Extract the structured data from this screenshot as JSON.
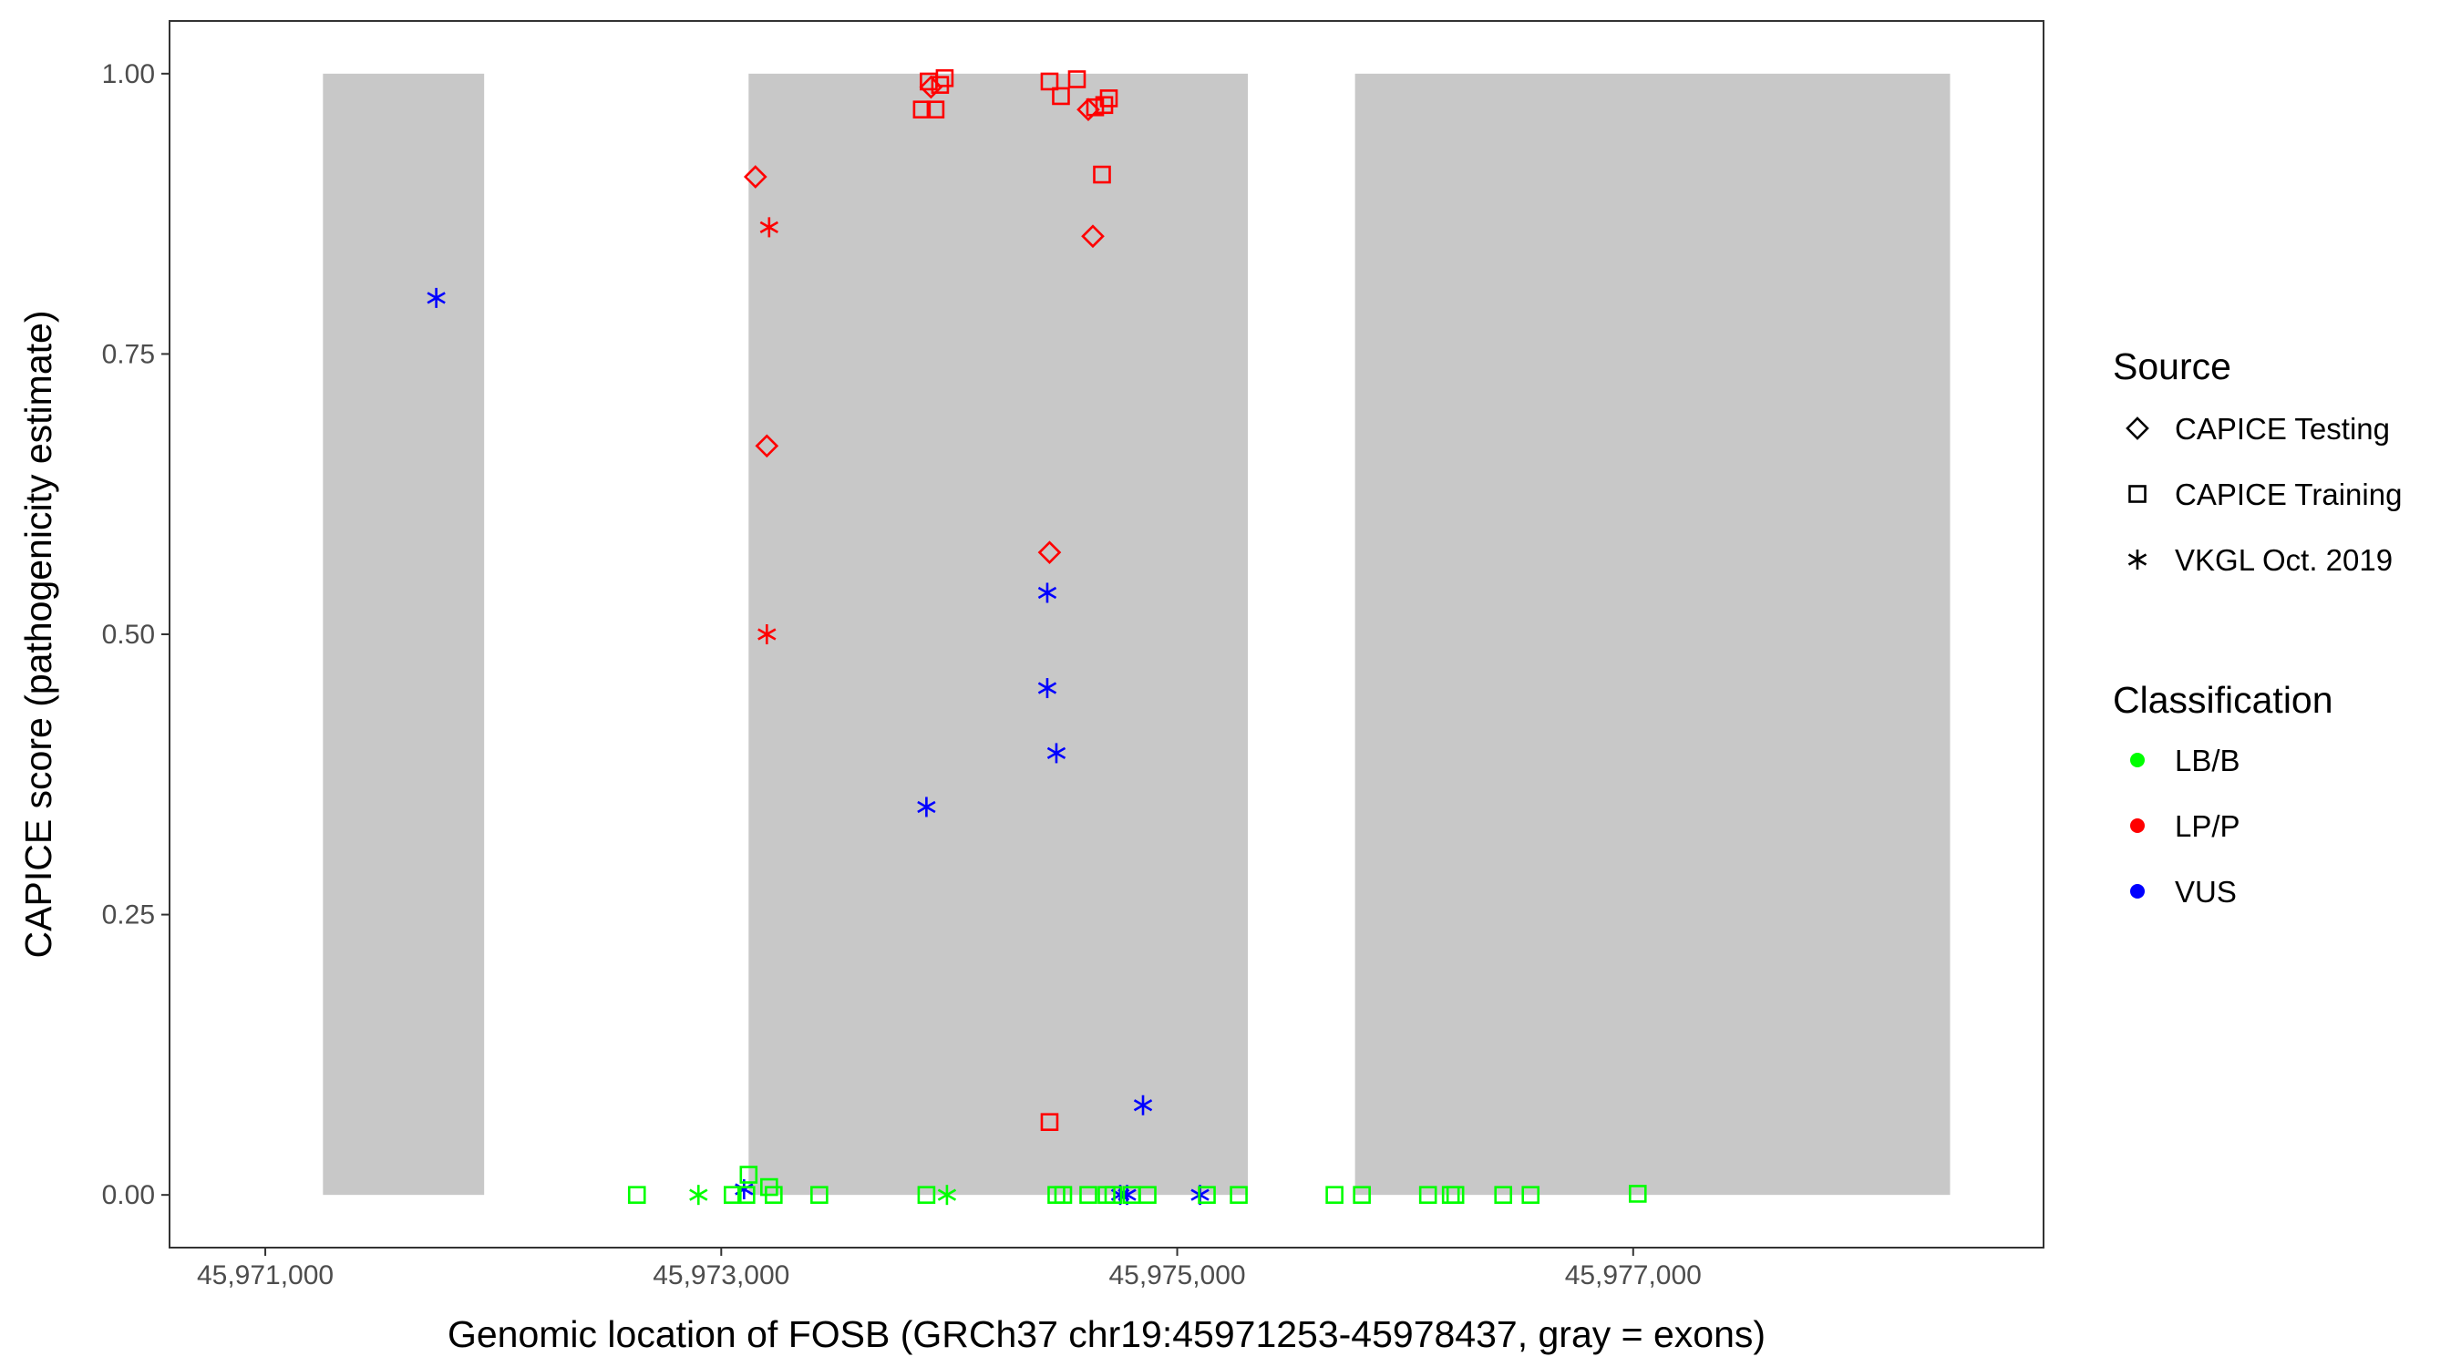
{
  "chart_data": {
    "type": "scatter",
    "xlabel": "Genomic location of FOSB (GRCh37 chr19:45971253-45978437, gray = exons)",
    "ylabel": "CAPICE score (pathogenicity estimate)",
    "xlim": [
      45970580,
      45978800
    ],
    "ylim": [
      -0.047,
      1.047
    ],
    "x_ticks": [
      45971000,
      45973000,
      45975000,
      45977000
    ],
    "x_tick_labels": [
      "45,971,000",
      "45,973,000",
      "45,975,000",
      "45,977,000"
    ],
    "y_ticks": [
      0,
      0.25,
      0.5,
      0.75,
      1
    ],
    "y_tick_labels": [
      "0.00",
      "0.25",
      "0.50",
      "0.75",
      "1.00"
    ],
    "grid": false,
    "exons": [
      {
        "start": 45971253,
        "end": 45971960
      },
      {
        "start": 45973120,
        "end": 45975310
      },
      {
        "start": 45975780,
        "end": 45978390
      }
    ],
    "exon_color": "#c8c8c8",
    "shapes": {
      "CAPICE Testing": "diamond",
      "CAPICE Training": "square",
      "VKGL Oct. 2019": "asterisk"
    },
    "colors": {
      "LB/B": "#00ff00",
      "LP/P": "#ff0000",
      "VUS": "#0000ff"
    },
    "points": [
      {
        "x": 45971750,
        "y": 0.8,
        "source": "VKGL Oct. 2019",
        "cls": "VUS"
      },
      {
        "x": 45973150,
        "y": 0.908,
        "source": "CAPICE Testing",
        "cls": "LP/P"
      },
      {
        "x": 45973210,
        "y": 0.863,
        "source": "VKGL Oct. 2019",
        "cls": "LP/P"
      },
      {
        "x": 45973200,
        "y": 0.668,
        "source": "CAPICE Testing",
        "cls": "LP/P"
      },
      {
        "x": 45973200,
        "y": 0.5,
        "source": "VKGL Oct. 2019",
        "cls": "LP/P"
      },
      {
        "x": 45973880,
        "y": 0.968,
        "source": "CAPICE Training",
        "cls": "LP/P"
      },
      {
        "x": 45973910,
        "y": 0.993,
        "source": "CAPICE Training",
        "cls": "LP/P"
      },
      {
        "x": 45973920,
        "y": 0.988,
        "source": "CAPICE Testing",
        "cls": "LP/P"
      },
      {
        "x": 45973940,
        "y": 0.968,
        "source": "CAPICE Training",
        "cls": "LP/P"
      },
      {
        "x": 45973960,
        "y": 0.99,
        "source": "CAPICE Training",
        "cls": "LP/P"
      },
      {
        "x": 45973980,
        "y": 0.996,
        "source": "CAPICE Training",
        "cls": "LP/P"
      },
      {
        "x": 45974440,
        "y": 0.993,
        "source": "CAPICE Training",
        "cls": "LP/P"
      },
      {
        "x": 45974490,
        "y": 0.98,
        "source": "CAPICE Training",
        "cls": "LP/P"
      },
      {
        "x": 45974560,
        "y": 0.995,
        "source": "CAPICE Training",
        "cls": "LP/P"
      },
      {
        "x": 45974610,
        "y": 0.968,
        "source": "CAPICE Testing",
        "cls": "LP/P"
      },
      {
        "x": 45974640,
        "y": 0.97,
        "source": "CAPICE Training",
        "cls": "LP/P"
      },
      {
        "x": 45974680,
        "y": 0.972,
        "source": "CAPICE Training",
        "cls": "LP/P"
      },
      {
        "x": 45974700,
        "y": 0.978,
        "source": "CAPICE Training",
        "cls": "LP/P"
      },
      {
        "x": 45974670,
        "y": 0.91,
        "source": "CAPICE Training",
        "cls": "LP/P"
      },
      {
        "x": 45974630,
        "y": 0.855,
        "source": "CAPICE Testing",
        "cls": "LP/P"
      },
      {
        "x": 45974440,
        "y": 0.573,
        "source": "CAPICE Testing",
        "cls": "LP/P"
      },
      {
        "x": 45974440,
        "y": 0.065,
        "source": "CAPICE Training",
        "cls": "LP/P"
      },
      {
        "x": 45974430,
        "y": 0.537,
        "source": "VKGL Oct. 2019",
        "cls": "VUS"
      },
      {
        "x": 45974430,
        "y": 0.452,
        "source": "VKGL Oct. 2019",
        "cls": "VUS"
      },
      {
        "x": 45974470,
        "y": 0.394,
        "source": "VKGL Oct. 2019",
        "cls": "VUS"
      },
      {
        "x": 45973900,
        "y": 0.346,
        "source": "VKGL Oct. 2019",
        "cls": "VUS"
      },
      {
        "x": 45974850,
        "y": 0.08,
        "source": "VKGL Oct. 2019",
        "cls": "VUS"
      },
      {
        "x": 45973100,
        "y": 0.005,
        "source": "VKGL Oct. 2019",
        "cls": "VUS"
      },
      {
        "x": 45974750,
        "y": 0.0,
        "source": "VKGL Oct. 2019",
        "cls": "VUS"
      },
      {
        "x": 45974780,
        "y": 0.0,
        "source": "VKGL Oct. 2019",
        "cls": "VUS"
      },
      {
        "x": 45975100,
        "y": 0.0,
        "source": "VKGL Oct. 2019",
        "cls": "VUS"
      },
      {
        "x": 45973120,
        "y": 0.018,
        "source": "CAPICE Training",
        "cls": "LB/B"
      },
      {
        "x": 45973210,
        "y": 0.007,
        "source": "CAPICE Training",
        "cls": "LB/B"
      },
      {
        "x": 45972630,
        "y": 0.0,
        "source": "CAPICE Training",
        "cls": "LB/B"
      },
      {
        "x": 45972900,
        "y": 0.0,
        "source": "VKGL Oct. 2019",
        "cls": "LB/B"
      },
      {
        "x": 45973050,
        "y": 0.0,
        "source": "CAPICE Training",
        "cls": "LB/B"
      },
      {
        "x": 45973110,
        "y": 0.0,
        "source": "CAPICE Training",
        "cls": "LB/B"
      },
      {
        "x": 45973230,
        "y": 0.0,
        "source": "CAPICE Training",
        "cls": "LB/B"
      },
      {
        "x": 45973430,
        "y": 0.0,
        "source": "CAPICE Training",
        "cls": "LB/B"
      },
      {
        "x": 45973900,
        "y": 0.0,
        "source": "CAPICE Training",
        "cls": "LB/B"
      },
      {
        "x": 45973990,
        "y": 0.0,
        "source": "VKGL Oct. 2019",
        "cls": "LB/B"
      },
      {
        "x": 45974470,
        "y": 0.0,
        "source": "CAPICE Training",
        "cls": "LB/B"
      },
      {
        "x": 45974500,
        "y": 0.0,
        "source": "CAPICE Training",
        "cls": "LB/B"
      },
      {
        "x": 45974610,
        "y": 0.0,
        "source": "CAPICE Training",
        "cls": "LB/B"
      },
      {
        "x": 45974690,
        "y": 0.0,
        "source": "CAPICE Training",
        "cls": "LB/B"
      },
      {
        "x": 45974720,
        "y": 0.0,
        "source": "CAPICE Training",
        "cls": "LB/B"
      },
      {
        "x": 45974800,
        "y": 0.0,
        "source": "CAPICE Training",
        "cls": "LB/B"
      },
      {
        "x": 45974870,
        "y": 0.0,
        "source": "CAPICE Training",
        "cls": "LB/B"
      },
      {
        "x": 45975130,
        "y": 0.0,
        "source": "CAPICE Training",
        "cls": "LB/B"
      },
      {
        "x": 45975270,
        "y": 0.0,
        "source": "CAPICE Training",
        "cls": "LB/B"
      },
      {
        "x": 45975690,
        "y": 0.0,
        "source": "CAPICE Training",
        "cls": "LB/B"
      },
      {
        "x": 45975810,
        "y": 0.0,
        "source": "CAPICE Training",
        "cls": "LB/B"
      },
      {
        "x": 45976100,
        "y": 0.0,
        "source": "CAPICE Training",
        "cls": "LB/B"
      },
      {
        "x": 45976200,
        "y": 0.0,
        "source": "CAPICE Training",
        "cls": "LB/B"
      },
      {
        "x": 45976220,
        "y": 0.0,
        "source": "CAPICE Training",
        "cls": "LB/B"
      },
      {
        "x": 45976430,
        "y": 0.0,
        "source": "CAPICE Training",
        "cls": "LB/B"
      },
      {
        "x": 45976550,
        "y": 0.0,
        "source": "CAPICE Training",
        "cls": "LB/B"
      },
      {
        "x": 45977020,
        "y": 0.001,
        "source": "CAPICE Training",
        "cls": "LB/B"
      }
    ]
  },
  "legend": {
    "source_title": "Source",
    "source_items": [
      {
        "label": "CAPICE Testing",
        "shape": "diamond"
      },
      {
        "label": "CAPICE Training",
        "shape": "square"
      },
      {
        "label": "VKGL Oct. 2019",
        "shape": "asterisk"
      }
    ],
    "class_title": "Classification",
    "class_items": [
      {
        "label": "LB/B",
        "color": "#00ff00"
      },
      {
        "label": "LP/P",
        "color": "#ff0000"
      },
      {
        "label": "VUS",
        "color": "#0000ff"
      }
    ]
  }
}
